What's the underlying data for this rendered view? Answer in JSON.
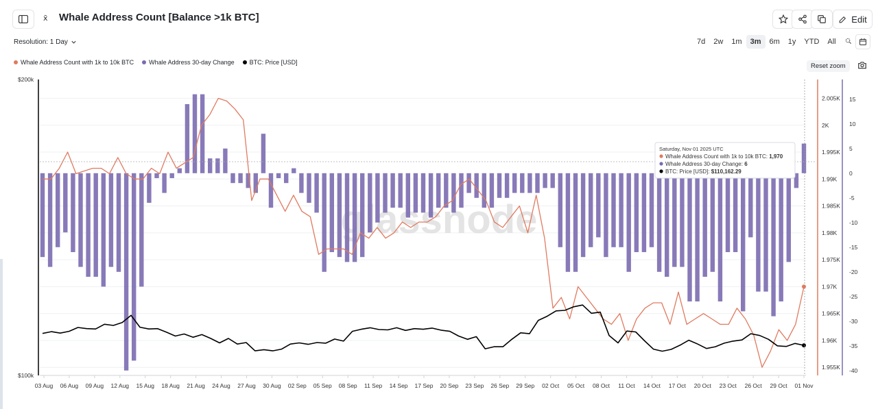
{
  "header": {
    "title": "Whale Address Count [Balance >1k BTC]",
    "edit_label": "Edit"
  },
  "toolbar": {
    "resolution_label": "Resolution: 1 Day",
    "ranges": [
      "7d",
      "2w",
      "1m",
      "3m",
      "6m",
      "1y",
      "YTD",
      "All"
    ],
    "active_range": "3m",
    "reset_zoom": "Reset zoom"
  },
  "legend": [
    {
      "label": "Whale Address Count with 1k to 10k BTC",
      "color": "#e07a5f"
    },
    {
      "label": "Whale Address 30-day Change",
      "color": "#7b6bb0"
    },
    {
      "label": "BTC: Price [USD]",
      "color": "#000000"
    }
  ],
  "tooltip": {
    "date": "Saturday, Nov 01 2025 UTC",
    "rows": [
      {
        "label": "Whale Address Count with 1k to 10k BTC:",
        "value": "1,970",
        "color": "#e07a5f"
      },
      {
        "label": "Whale Address 30-day Change:",
        "value": "6",
        "color": "#7b6bb0"
      },
      {
        "label": "BTC: Price [USD]:",
        "value": "$110,162.29",
        "color": "#000000"
      }
    ]
  },
  "watermark": "glassnode",
  "chart_data": {
    "type": "line",
    "x_tick_labels": [
      "03 Aug",
      "06 Aug",
      "09 Aug",
      "12 Aug",
      "15 Aug",
      "18 Aug",
      "21 Aug",
      "24 Aug",
      "27 Aug",
      "30 Aug",
      "02 Sep",
      "05 Sep",
      "08 Sep",
      "11 Sep",
      "14 Sep",
      "17 Sep",
      "20 Sep",
      "23 Sep",
      "26 Sep",
      "29 Sep",
      "02 Oct",
      "05 Oct",
      "08 Oct",
      "11 Oct",
      "14 Oct",
      "17 Oct",
      "20 Oct",
      "23 Oct",
      "26 Oct",
      "29 Oct",
      "01 Nov"
    ],
    "left_axis": {
      "labels": [
        "$200k",
        "$100k"
      ],
      "range": [
        100000,
        200000
      ]
    },
    "mid_axis": {
      "labels": [
        "2.005K",
        "2K",
        "1.995K",
        "1.99K",
        "1.985K",
        "1.98K",
        "1.975K",
        "1.97K",
        "1.965K",
        "1.96K",
        "1.955K"
      ],
      "range": [
        1953.5,
        2008.5
      ]
    },
    "right_axis": {
      "labels": [
        "15",
        "10",
        "5",
        "0",
        "-5",
        "-10",
        "-15",
        "-20",
        "-25",
        "-30",
        "-35",
        "-40"
      ],
      "range": [
        -41,
        19
      ]
    },
    "series": [
      {
        "name": "Whale Address Count with 1k to 10k BTC",
        "axis": "mid",
        "color": "#e07a5f",
        "values": [
          1990,
          1990,
          1992,
          1995,
          1991,
          1991.5,
          1992,
          1992,
          1991,
          1994,
          1991,
          1990,
          1990,
          1992,
          1991,
          1995,
          1992,
          1993,
          1994,
          2000,
          2002,
          2005,
          2004.5,
          2003,
          2001,
          1986,
          1990,
          1990,
          1987,
          1984,
          1987,
          1984,
          1983,
          1976,
          1977,
          1977,
          1977,
          1976,
          1980,
          1979,
          1981,
          1979,
          1980,
          1982,
          1981,
          1982,
          1982,
          1983,
          1985,
          1986,
          1989,
          1990,
          1988,
          1986,
          1982,
          1981,
          1983,
          1985,
          1980,
          1987,
          1979,
          1966,
          1968,
          1964,
          1970,
          1968,
          1966,
          1964,
          1963,
          1965,
          1960,
          1964,
          1966,
          1967,
          1967,
          1963,
          1969,
          1963,
          1964,
          1965,
          1964,
          1963,
          1963,
          1966,
          1964,
          1961,
          1955,
          1958,
          1962,
          1960,
          1963,
          1970
        ]
      },
      {
        "name": "Whale Address 30-day Change",
        "axis": "right",
        "color": "#7b6bb0",
        "values": [
          -17,
          -19,
          -15,
          -12,
          -16,
          -19,
          -21,
          -21,
          -23,
          -19,
          -20,
          -40,
          -38,
          -23,
          -6,
          -1,
          -4,
          -1,
          1,
          14,
          16,
          16,
          3,
          3,
          5,
          -2,
          -2,
          -3,
          -4,
          8,
          -7,
          -1,
          -2,
          1,
          -4,
          -6,
          -8,
          -20,
          -16,
          -17,
          -18,
          -18,
          -17,
          -12,
          -10,
          -8,
          -7,
          -7,
          -9,
          -8,
          -8,
          -9,
          -7,
          -7,
          -8,
          -7,
          -4,
          -5,
          -7,
          -7,
          -5,
          -5,
          -4,
          -4,
          -4,
          -4,
          -3,
          -3,
          -15,
          -20,
          -20,
          -17,
          -15,
          -13,
          -17,
          -15,
          -15,
          -20,
          -16,
          -16,
          -15,
          -20,
          -21,
          -19,
          -19,
          -26,
          -26,
          -21,
          -20,
          -26,
          -16,
          -16,
          -28,
          -13,
          -24,
          -24,
          -29,
          -26,
          -18,
          -3,
          6
        ]
      },
      {
        "name": "BTC: Price [USD]",
        "axis": "left",
        "color": "#000000",
        "values": [
          114200,
          114800,
          114300,
          114900,
          116200,
          115800,
          115700,
          117300,
          116900,
          117900,
          120300,
          116300,
          115700,
          115800,
          114600,
          113300,
          114000,
          112900,
          113800,
          112500,
          111000,
          112500,
          110600,
          111100,
          108300,
          108700,
          108300,
          108900,
          110600,
          111000,
          110500,
          111100,
          110900,
          112300,
          111600,
          114900,
          115600,
          116100,
          115500,
          115400,
          116100,
          115200,
          115800,
          115600,
          116000,
          115300,
          114900,
          113300,
          112200,
          113100,
          109000,
          109700,
          109700,
          112200,
          114400,
          114100,
          118600,
          120000,
          121800,
          122000,
          123200,
          123800,
          121000,
          121400,
          113500,
          111000,
          115000,
          114700,
          111700,
          108900,
          108200,
          108800,
          110200,
          111900,
          110600,
          109100,
          109700,
          110900,
          111600,
          112000,
          114100,
          113500,
          112200,
          110000,
          109800,
          110800,
          110162
        ]
      }
    ],
    "grid": true,
    "legend_position": "top-left"
  }
}
